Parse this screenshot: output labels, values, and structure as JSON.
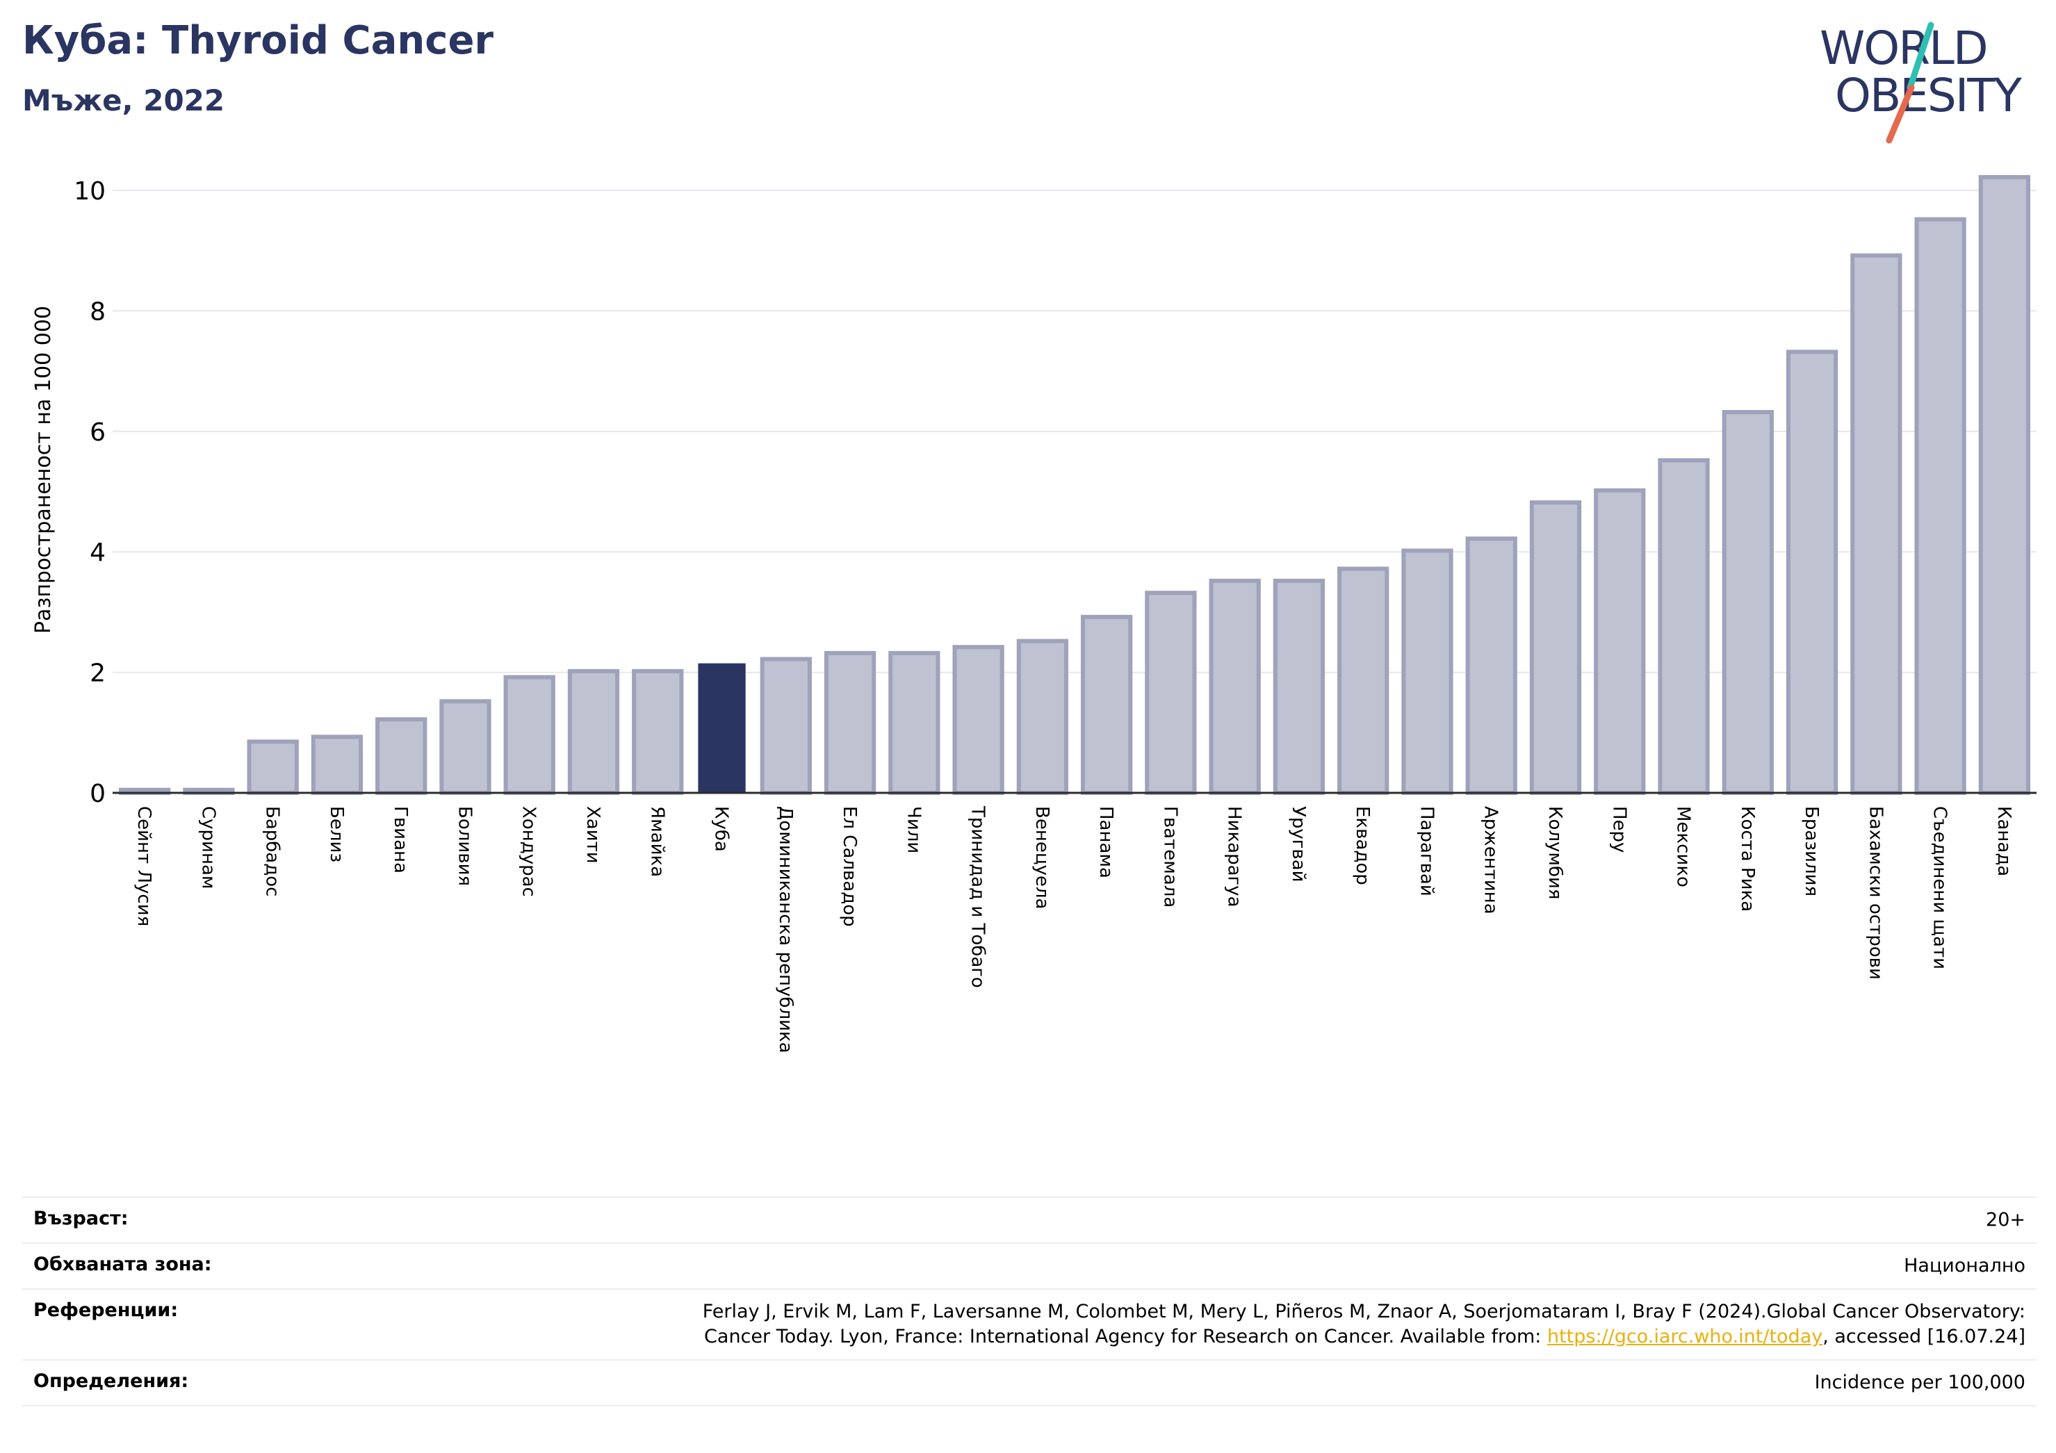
{
  "header": {
    "title": "Куба: Thyroid Cancer",
    "subtitle": "Мъже, 2022"
  },
  "logo": {
    "line1": "WORLD",
    "line2": "OBESITY",
    "text_color": "#2b3562",
    "slash_colors": [
      "#2fbfb2",
      "#e36a4f"
    ]
  },
  "chart_data": {
    "type": "bar",
    "title": "Куба: Thyroid Cancer",
    "subtitle": "Мъже, 2022",
    "ylabel": "Разпространеност  на 100 000",
    "xlabel": "",
    "ylim": [
      0,
      10.3
    ],
    "yticks": [
      0,
      2,
      4,
      6,
      8,
      10
    ],
    "grid": true,
    "highlight": "Куба",
    "colors": {
      "bar_fill": "#bfc2d0",
      "bar_stroke": "#9ea2bb",
      "highlight_fill": "#2b3562",
      "gridline": "#e6e7ee",
      "axis": "#2b2b2b"
    },
    "categories": [
      "Сейнт Лусия",
      "Суринам",
      "Барбадос",
      "Белиз",
      "Гвиана",
      "Боливия",
      "Хондурас",
      "Хаити",
      "Ямайка",
      "Куба",
      "Доминиканска република",
      "Ел Салвадор",
      "Чили",
      "Тринидад и Тобаго",
      "Венецуела",
      "Панама",
      "Гватемала",
      "Никарагуа",
      "Уругвай",
      "Еквадор",
      "Парагвай",
      "Аржентина",
      "Колумбия",
      "Перу",
      "Мексико",
      "Коста Рика",
      "Бразилия",
      "Бахамски острови",
      "Съединени щати",
      "Канада"
    ],
    "values": [
      0.05,
      0.05,
      0.85,
      0.93,
      1.22,
      1.52,
      1.92,
      2.02,
      2.02,
      2.15,
      2.22,
      2.32,
      2.32,
      2.42,
      2.52,
      2.92,
      3.32,
      3.52,
      3.52,
      3.72,
      4.02,
      4.22,
      4.82,
      5.02,
      5.52,
      6.32,
      7.32,
      8.92,
      9.52,
      10.22
    ]
  },
  "meta": {
    "age_label": "Възраст:",
    "age_value": "20+",
    "coverage_label": "Обхваната зона:",
    "coverage_value": "Национално",
    "references_label": "Референции:",
    "references_line1": "Ferlay J, Ervik M, Lam F, Laversanne M, Colombet M, Mery L, Piñeros M, Znaor A, Soerjomataram I, Bray F (2024).Global Cancer Observatory:",
    "references_line2_before": "Cancer Today. Lyon, France: International Agency for Research on Cancer. Available from: ",
    "references_link": "https://gco.iarc.who.int/today",
    "references_line2_after": ", accessed [16.07.24]",
    "definitions_label": "Определения:",
    "definitions_value": "Incidence per 100,000"
  }
}
